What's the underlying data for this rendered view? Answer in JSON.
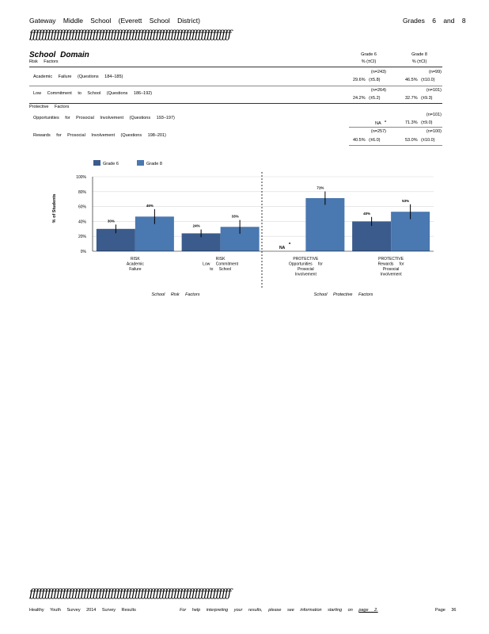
{
  "header": {
    "title": "Gateway Middle School (Everett School District)",
    "grades": "Grades 6 and 8",
    "decoration": "ƒƒƒƒƒƒƒƒƒƒƒƒƒƒƒƒƒƒƒƒƒƒƒƒƒƒƒƒƒƒƒƒƒƒƒƒƒƒƒƒƒƒƒƒƒƒƒƒƒƒƒƒƒƒƒƒƒƒƒƒƒƒƒƒƒƒƒ"
  },
  "section": {
    "title": "School Domain",
    "risk_heading": "Risk Factors",
    "protective_heading": "Protective Factors",
    "col_grade6": "Grade 6",
    "col_grade8": "Grade 8",
    "col_sub6": "% (±CI)",
    "col_sub8": "% (±CI)",
    "rows": [
      {
        "label": "Academic Failure (Questions 184–185)",
        "n6": "(n=243)",
        "n8": "(n=99)",
        "v6": "29.6%",
        "ci6": "(±5.8)",
        "v8": "46.5%",
        "ci8": "(±10.0)"
      },
      {
        "label": "Low Commitment to School (Questions 186–192)",
        "n6": "(n=264)",
        "n8": "(n=101)",
        "v6": "24.2%",
        "ci6": "(±5.2)",
        "v8": "32.7%",
        "ci8": "(±9.3)"
      },
      {
        "label": "Opportunities for Prosocial Involvement (Questions 193–197)",
        "n6": "",
        "n8": "(n=101)",
        "v6": "NA",
        "v6sup": "a",
        "ci6": "",
        "v8": "71.3%",
        "ci8": "(±9.0)"
      },
      {
        "label": "Rewards for Prosocial Involvement (Questions 198–201)",
        "n6": "(n=257)",
        "n8": "(n=100)",
        "v6": "40.5%",
        "ci6": "(±6.0)",
        "v8": "53.0%",
        "ci8": "(±10.0)"
      }
    ]
  },
  "chart_data": {
    "type": "bar",
    "ylabel": "% of Students",
    "ylim": [
      0,
      100
    ],
    "yticks": [
      "0%",
      "20%",
      "40%",
      "60%",
      "80%",
      "100%"
    ],
    "categories": [
      [
        "RISK",
        "Academic",
        "Failure"
      ],
      [
        "RISK",
        "Low Commitment",
        "to School"
      ],
      [
        "PROTECTIVE",
        "Opportunities for",
        "Prosocial",
        "Involvement"
      ],
      [
        "PROTECTIVE",
        "Rewards for",
        "Prosocial",
        "Involvement"
      ]
    ],
    "series": [
      {
        "name": "Grade 6",
        "color": "#3b5b8d",
        "values": [
          30,
          24,
          null,
          40
        ],
        "ci": [
          5.8,
          5.2,
          null,
          6.0
        ],
        "labels": [
          "30%",
          "24%",
          "",
          "40%"
        ]
      },
      {
        "name": "Grade 8",
        "color": "#4a78b0",
        "values": [
          46.5,
          32.7,
          71.3,
          53
        ],
        "ci": [
          10,
          9.3,
          9,
          10
        ],
        "labels": [
          "46%",
          "33%",
          "71%",
          "53%"
        ]
      }
    ],
    "na_label": "NA",
    "na_sup": "a",
    "group_labels": [
      "School Risk Factors",
      "School Protective Factors"
    ]
  },
  "footer": {
    "decoration": "ƒƒƒƒƒƒƒƒƒƒƒƒƒƒƒƒƒƒƒƒƒƒƒƒƒƒƒƒƒƒƒƒƒƒƒƒƒƒƒƒƒƒƒƒƒƒƒƒƒƒƒƒƒƒƒƒƒƒƒƒƒƒƒƒƒƒƒ",
    "left": "Healthy Youth Survey 2014 Survey Results",
    "help": "For help interpreting your results, please see information starting on",
    "link": "page 2.",
    "page": "Page 36"
  }
}
